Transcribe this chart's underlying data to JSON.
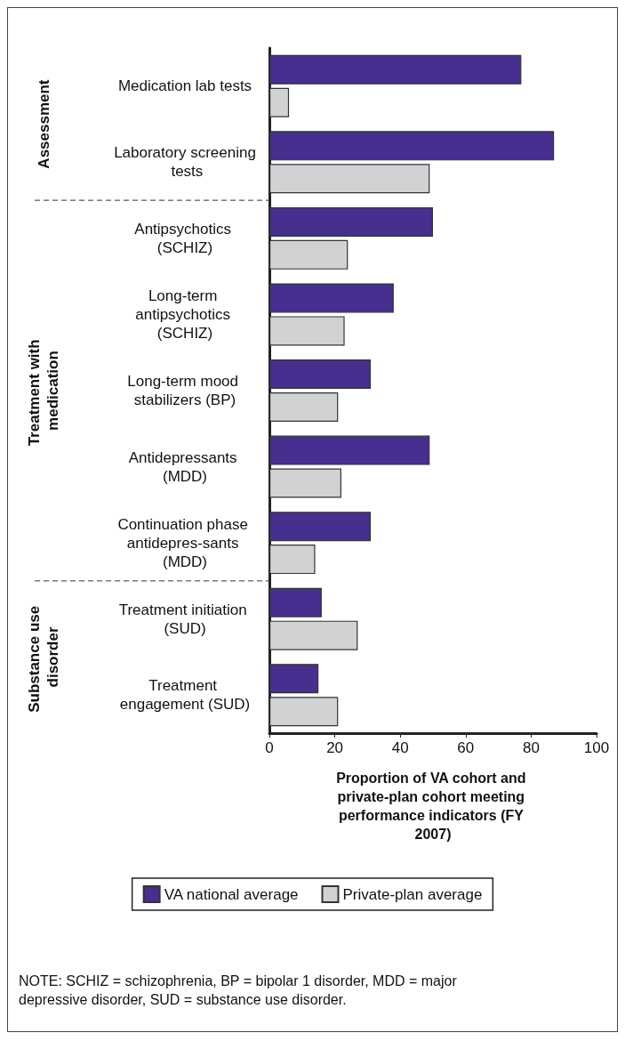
{
  "chart_data": {
    "type": "bar",
    "orientation": "horizontal",
    "xlabel": "Proportion of VA cohort and private-plan cohort meeting performance indicators (FY 2007)",
    "categories": [
      "Medication lab tests",
      "Laboratory screening tests",
      "Antipsychotics (SCHIZ)",
      "Long-term antipsychotics (SCHIZ)",
      "Long-term mood stabilizers (BP)",
      "Antidepressants (MDD)",
      "Continuation phase antidepres-sants (MDD)",
      "Treatment initiation (SUD)",
      "Treatment engagement (SUD)"
    ],
    "series": [
      {
        "name": "VA national average",
        "color": "#472f8f",
        "values": [
          77,
          87,
          50,
          38,
          31,
          49,
          31,
          16,
          15
        ]
      },
      {
        "name": "Private-plan average",
        "color": "#d1d2d4",
        "values": [
          6,
          49,
          24,
          23,
          21,
          22,
          14,
          27,
          21
        ]
      }
    ],
    "xlim": [
      0,
      100
    ],
    "xticks": [
      0,
      20,
      40,
      60,
      80,
      100
    ],
    "legend": "bottom",
    "annotations": [
      "Assessment",
      "Treatment with medication",
      "Substance use disorder",
      "NOTE: SCHIZ = schizophrenia, BP = bipolar 1 disorder, MDD = major depressive disorder, SUD = substance use disorder."
    ]
  }
}
